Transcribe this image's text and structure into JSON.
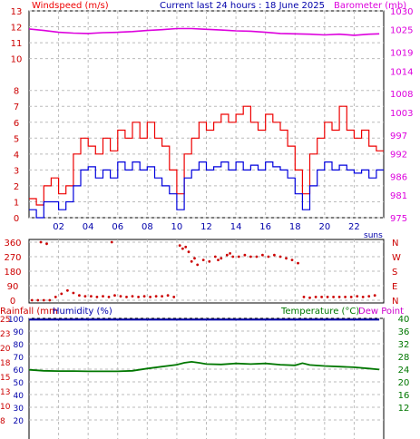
{
  "header": {
    "left": "Windspeed (m/s)",
    "center": "Current last 24 hours : 18 June 2025",
    "right": "Barometer (mb)"
  },
  "colors": {
    "wind_avg": "#0000dd",
    "wind_gust": "#ee0000",
    "barometer": "#dd00dd",
    "direction": "#cc0000",
    "humidity": "#0000aa",
    "temperature": "#007700",
    "dewpoint": "#cc00cc",
    "grid": "#bbbbbb"
  },
  "chart_data": [
    {
      "type": "line",
      "x_tick_labels": [
        "02",
        "04",
        "06",
        "08",
        "10",
        "12",
        "14",
        "16",
        "18",
        "20",
        "22"
      ],
      "left_axis": {
        "label": "Windspeed (m/s)",
        "ticks": [
          0,
          1,
          2,
          3,
          4,
          5,
          6,
          7,
          8,
          10,
          11,
          12,
          13
        ]
      },
      "right_axis": {
        "label": "Barometer (mb)",
        "ticks": [
          975,
          981,
          986,
          992,
          997,
          1003,
          1008,
          1014,
          1019,
          1025,
          1030
        ]
      },
      "series": [
        {
          "name": "Windspeed",
          "axis": "left",
          "x": [
            0,
            0.5,
            1,
            1.5,
            2,
            2.5,
            3,
            3.5,
            4,
            4.5,
            5,
            5.5,
            6,
            6.5,
            7,
            7.5,
            8,
            8.5,
            9,
            9.5,
            10,
            10.5,
            11,
            11.5,
            12,
            12.5,
            13,
            13.5,
            14,
            14.5,
            15,
            15.5,
            16,
            16.5,
            17,
            17.5,
            18,
            18.5,
            19,
            19.5,
            20,
            20.5,
            21,
            21.5,
            22,
            22.5,
            23,
            23.5
          ],
          "values": [
            0.5,
            0,
            1,
            1,
            0.5,
            1,
            2,
            3,
            3.2,
            2.5,
            3,
            2.5,
            3.5,
            3,
            3.5,
            3,
            3.2,
            2.5,
            2,
            1.5,
            0.5,
            2.5,
            3,
            3.5,
            3,
            3.2,
            3.5,
            3,
            3.5,
            3,
            3.3,
            3,
            3.5,
            3.2,
            3,
            2.5,
            1.5,
            0.5,
            2,
            3,
            3.5,
            3,
            3.3,
            3,
            2.8,
            3,
            2.5,
            3
          ]
        },
        {
          "name": "Gust",
          "axis": "left",
          "x": [
            0,
            0.5,
            1,
            1.5,
            2,
            2.5,
            3,
            3.5,
            4,
            4.5,
            5,
            5.5,
            6,
            6.5,
            7,
            7.5,
            8,
            8.5,
            9,
            9.5,
            10,
            10.5,
            11,
            11.5,
            12,
            12.5,
            13,
            13.5,
            14,
            14.5,
            15,
            15.5,
            16,
            16.5,
            17,
            17.5,
            18,
            18.5,
            19,
            19.5,
            20,
            20.5,
            21,
            21.5,
            22,
            22.5,
            23,
            23.5
          ],
          "values": [
            1.2,
            0.8,
            2,
            2.5,
            1.5,
            2,
            4,
            5,
            4.5,
            4,
            5,
            4.2,
            5.5,
            5,
            6,
            5,
            6,
            5,
            4.5,
            3,
            1.5,
            4,
            5,
            6,
            5.5,
            6,
            6.5,
            6,
            6.5,
            7,
            6,
            5.5,
            6.5,
            6,
            5.5,
            4.5,
            3,
            1.5,
            4,
            5,
            6,
            5.5,
            7,
            5.5,
            5,
            5.5,
            4.5,
            4.2
          ]
        },
        {
          "name": "Barometer",
          "axis": "right",
          "x": [
            0,
            1,
            2,
            3,
            4,
            5,
            6,
            7,
            8,
            9,
            10,
            11,
            12,
            13,
            14,
            15,
            16,
            17,
            18,
            19,
            20,
            21,
            22,
            23,
            23.7
          ],
          "values": [
            1025.2,
            1024.8,
            1024.3,
            1024.1,
            1024.0,
            1024.2,
            1024.3,
            1024.5,
            1024.8,
            1025.0,
            1025.3,
            1025.3,
            1025.1,
            1024.9,
            1024.7,
            1024.6,
            1024.3,
            1024.0,
            1023.9,
            1023.8,
            1023.6,
            1023.8,
            1023.5,
            1023.8,
            1023.9
          ]
        }
      ]
    },
    {
      "type": "scatter",
      "x_tick_labels": [],
      "left_axis": {
        "label": "",
        "ticks": [
          0,
          90,
          180,
          270,
          360
        ]
      },
      "right_axis": {
        "label": "",
        "ticks": [
          "N",
          "E",
          "S",
          "W",
          "N"
        ]
      },
      "corner_label": "suns",
      "series": [
        {
          "name": "Wind direction",
          "x": [
            0.2,
            0.6,
            1.0,
            1.4,
            1.8,
            2.2,
            2.6,
            3.0,
            3.4,
            3.8,
            4.2,
            4.6,
            5.0,
            5.4,
            5.8,
            6.2,
            6.6,
            7.0,
            7.4,
            7.8,
            8.2,
            8.6,
            9.0,
            9.4,
            9.8,
            10.2,
            10.6,
            11.0,
            11.4,
            11.8,
            12.2,
            12.6,
            13.0,
            13.4,
            13.8,
            14.2,
            14.6,
            15.0,
            15.4,
            15.8,
            16.2,
            16.6,
            17.0,
            17.4,
            17.8,
            18.2,
            18.6,
            19.0,
            19.4,
            19.8,
            20.2,
            20.6,
            21.0,
            21.4,
            21.8,
            22.2,
            22.6,
            23.0,
            23.4,
            0.8,
            1.2,
            5.6,
            10.4,
            10.8,
            11.2,
            12.8,
            13.6
          ],
          "values": [
            0,
            0,
            0,
            0,
            20,
            40,
            60,
            45,
            30,
            25,
            25,
            20,
            25,
            20,
            30,
            25,
            20,
            25,
            20,
            25,
            20,
            25,
            25,
            30,
            20,
            340,
            330,
            240,
            220,
            250,
            240,
            270,
            260,
            280,
            270,
            270,
            280,
            270,
            270,
            280,
            270,
            280,
            270,
            260,
            250,
            230,
            20,
            15,
            20,
            20,
            20,
            20,
            20,
            20,
            20,
            25,
            20,
            25,
            30,
            360,
            350,
            360,
            320,
            300,
            260,
            250,
            290
          ]
        }
      ]
    },
    {
      "type": "line",
      "x_tick_labels": [],
      "headers": {
        "left_a": "Rainfall (mm",
        "left_b": "Humidity (%)",
        "right_a": "Temperature (°C)",
        "right_b": "Dew Point"
      },
      "far_left_axis": {
        "label": "Rainfall (mm",
        "ticks": [
          8,
          10,
          13,
          15,
          18,
          20,
          23,
          25
        ]
      },
      "left_axis": {
        "label": "Humidity (%)",
        "ticks": [
          20,
          30,
          40,
          50,
          60,
          70,
          80,
          90,
          100
        ]
      },
      "right_axis": {
        "label": "Temperature (°C)",
        "ticks": [
          12,
          16,
          20,
          24,
          28,
          32,
          36,
          40
        ]
      },
      "series": [
        {
          "name": "Humidity (%)",
          "axis": "left",
          "x": [
            0,
            23.7
          ],
          "values": [
            99,
            99
          ]
        },
        {
          "name": "Temperature (°C)",
          "axis": "right",
          "x": [
            0,
            1,
            2,
            3,
            4,
            5,
            6,
            7,
            8,
            9,
            10,
            10.5,
            11,
            11.5,
            12,
            13,
            14,
            15,
            16,
            17,
            18,
            18.5,
            19,
            20,
            21,
            22,
            23,
            23.7
          ],
          "values": [
            23.8,
            23.5,
            23.4,
            23.4,
            23.3,
            23.3,
            23.3,
            23.5,
            24.2,
            24.8,
            25.4,
            26.0,
            26.3,
            26.0,
            25.6,
            25.5,
            25.8,
            25.6,
            25.8,
            25.4,
            25.2,
            25.9,
            25.3,
            25.0,
            24.8,
            24.6,
            24.2,
            23.9
          ]
        }
      ]
    }
  ]
}
